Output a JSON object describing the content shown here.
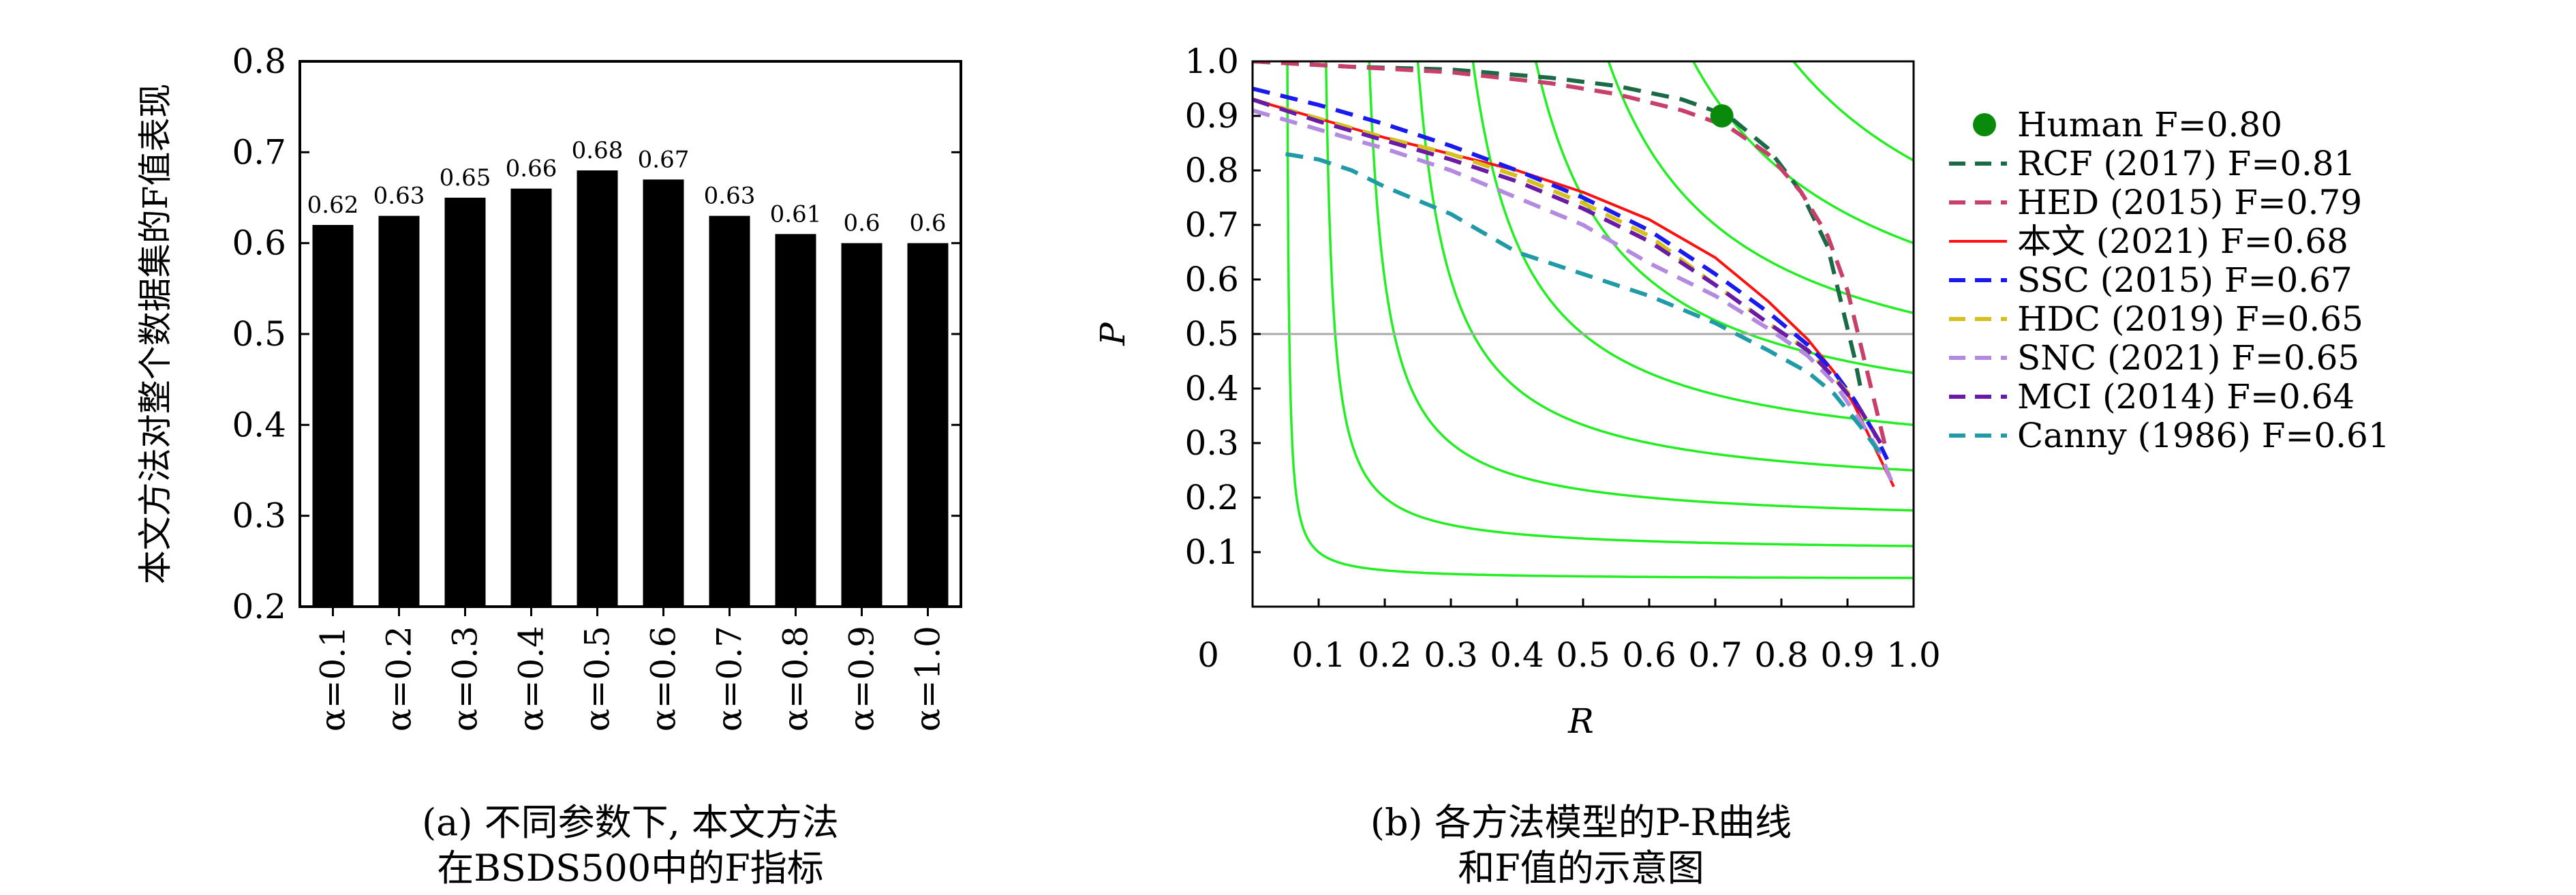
{
  "chart_data": [
    {
      "type": "bar",
      "ylabel": "本文方法对整个数据集的F值表现",
      "ylim": [
        0.2,
        0.8
      ],
      "yticks": [
        "0.2",
        "0.3",
        "0.4",
        "0.5",
        "0.6",
        "0.7",
        "0.8"
      ],
      "categories": [
        "α=0.1",
        "α=0.2",
        "α=0.3",
        "α=0.4",
        "α=0.5",
        "α=0.6",
        "α=0.7",
        "α=0.8",
        "α=0.9",
        "α=1.0"
      ],
      "values": [
        0.62,
        0.63,
        0.65,
        0.66,
        0.68,
        0.67,
        0.63,
        0.61,
        0.6,
        0.6
      ],
      "value_labels": [
        "0.62",
        "0.63",
        "0.65",
        "0.66",
        "0.68",
        "0.67",
        "0.63",
        "0.61",
        "0.6",
        "0.6"
      ],
      "bar_color": "#000000",
      "caption_line1": "(a) 不同参数下, 本文方法",
      "caption_line2": "在BSDS500中的F指标"
    },
    {
      "type": "line",
      "xlabel": "R",
      "ylabel": "P",
      "xlim": [
        0,
        1.0
      ],
      "ylim": [
        0,
        1.0
      ],
      "xticks": [
        "0",
        "0.1",
        "0.2",
        "0.3",
        "0.4",
        "0.5",
        "0.6",
        "0.7",
        "0.8",
        "0.9",
        "1.0"
      ],
      "yticks": [
        "0.1",
        "0.2",
        "0.3",
        "0.4",
        "0.5",
        "0.6",
        "0.7",
        "0.8",
        "0.9",
        "1.0"
      ],
      "iso_f_lines": [
        0.1,
        0.2,
        0.3,
        0.4,
        0.5,
        0.6,
        0.7,
        0.8,
        0.9
      ],
      "iso_color": "#22ee22",
      "reference_line_p": 0.5,
      "human_point": {
        "label": "Human F=0.80",
        "R": 0.71,
        "P": 0.9,
        "color": "#0a8a0a"
      },
      "series": [
        {
          "name": "RCF (2017) F=0.81",
          "color": "#1a6b45",
          "dash": true,
          "x": [
            0.0,
            0.15,
            0.3,
            0.45,
            0.55,
            0.65,
            0.72,
            0.78,
            0.83,
            0.87,
            0.89,
            0.91,
            0.92
          ],
          "y": [
            1.0,
            0.99,
            0.985,
            0.97,
            0.955,
            0.93,
            0.9,
            0.84,
            0.76,
            0.66,
            0.56,
            0.46,
            0.4
          ]
        },
        {
          "name": "HED (2015) F=0.79",
          "color": "#c8406a",
          "dash": true,
          "x": [
            0.0,
            0.15,
            0.3,
            0.45,
            0.55,
            0.65,
            0.72,
            0.78,
            0.83,
            0.87,
            0.9,
            0.92,
            0.94,
            0.96
          ],
          "y": [
            1.0,
            0.99,
            0.98,
            0.96,
            0.94,
            0.91,
            0.88,
            0.83,
            0.76,
            0.68,
            0.58,
            0.48,
            0.38,
            0.28
          ]
        },
        {
          "name": "本文 (2021) F=0.68",
          "color": "#ff1010",
          "dash": false,
          "x": [
            0.0,
            0.1,
            0.2,
            0.3,
            0.4,
            0.5,
            0.6,
            0.7,
            0.78,
            0.84,
            0.88,
            0.91,
            0.93,
            0.95,
            0.97
          ],
          "y": [
            0.93,
            0.895,
            0.86,
            0.83,
            0.8,
            0.76,
            0.71,
            0.64,
            0.56,
            0.49,
            0.43,
            0.37,
            0.32,
            0.27,
            0.22
          ]
        },
        {
          "name": "SSC (2015) F=0.67",
          "color": "#1a1aee",
          "dash": true,
          "x": [
            0.0,
            0.1,
            0.2,
            0.3,
            0.4,
            0.5,
            0.6,
            0.7,
            0.78,
            0.84,
            0.88,
            0.91,
            0.94,
            0.96
          ],
          "y": [
            0.95,
            0.92,
            0.885,
            0.845,
            0.8,
            0.75,
            0.69,
            0.61,
            0.54,
            0.48,
            0.43,
            0.38,
            0.32,
            0.27
          ]
        },
        {
          "name": "HDC (2019) F=0.65",
          "color": "#d6c020",
          "dash": true,
          "x": [
            0.0,
            0.1,
            0.2,
            0.3,
            0.4,
            0.5,
            0.6,
            0.7,
            0.78,
            0.84,
            0.88,
            0.91
          ],
          "y": [
            0.93,
            0.895,
            0.86,
            0.83,
            0.79,
            0.74,
            0.68,
            0.59,
            0.52,
            0.47,
            0.42,
            0.38
          ]
        },
        {
          "name": "SNC (2021) F=0.65",
          "color": "#b48ae0",
          "dash": true,
          "x": [
            0.0,
            0.1,
            0.2,
            0.3,
            0.4,
            0.5,
            0.6,
            0.7,
            0.78,
            0.84,
            0.88,
            0.92,
            0.95,
            0.97
          ],
          "y": [
            0.91,
            0.875,
            0.84,
            0.8,
            0.75,
            0.7,
            0.63,
            0.57,
            0.51,
            0.46,
            0.41,
            0.34,
            0.28,
            0.22
          ]
        },
        {
          "name": "MCI (2014) F=0.64",
          "color": "#6a1aa6",
          "dash": true,
          "x": [
            0.0,
            0.1,
            0.2,
            0.3,
            0.4,
            0.5,
            0.6,
            0.7,
            0.78,
            0.84,
            0.88,
            0.92,
            0.95
          ],
          "y": [
            0.93,
            0.89,
            0.855,
            0.82,
            0.78,
            0.73,
            0.67,
            0.59,
            0.52,
            0.47,
            0.42,
            0.36,
            0.3
          ]
        },
        {
          "name": "Canny (1986) F=0.61",
          "color": "#209aa6",
          "dash": true,
          "x": [
            0.05,
            0.1,
            0.15,
            0.2,
            0.3,
            0.4,
            0.5,
            0.6,
            0.7,
            0.78,
            0.84,
            0.88,
            0.92,
            0.95
          ],
          "y": [
            0.83,
            0.82,
            0.8,
            0.77,
            0.72,
            0.65,
            0.61,
            0.57,
            0.52,
            0.47,
            0.43,
            0.39,
            0.33,
            0.28
          ]
        }
      ],
      "caption_line1": "(b) 各方法模型的P-R曲线",
      "caption_line2": "和F值的示意图"
    }
  ]
}
